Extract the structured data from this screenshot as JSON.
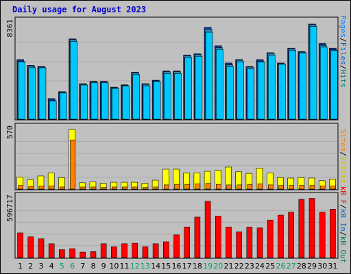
{
  "title": "Daily usage for August 2023",
  "colors": {
    "pages": "#003ea8",
    "files": "#2c8ab5",
    "hits": "#00c8ff",
    "visits": "#ffff00",
    "sites": "#ff8000",
    "kbf": "#ff0000",
    "kbin": "#0060a0",
    "kbout": "#007060",
    "weekend": "#00a060",
    "weekday": "#000000",
    "background": "#c0c0c0"
  },
  "side_labels": {
    "top": [
      {
        "text": "Pages",
        "color": "#0080ff"
      },
      {
        "text": "/",
        "color": "#000000"
      },
      {
        "text": "Files",
        "color": "#0060c0"
      },
      {
        "text": "/",
        "color": "#000000"
      },
      {
        "text": "Hits",
        "color": "#00806a"
      }
    ],
    "mid": [
      {
        "text": "Sites",
        "color": "#ff8000"
      },
      {
        "text": "/",
        "color": "#000000"
      },
      {
        "text": "Visits",
        "color": "#d0c000"
      }
    ],
    "bottom": [
      {
        "text": "kB F",
        "color": "#ff0000"
      },
      {
        "text": "/",
        "color": "#000000"
      },
      {
        "text": "kB In",
        "color": "#0060c0"
      },
      {
        "text": "/",
        "color": "#000000"
      },
      {
        "text": "kB Out",
        "color": "#00806a"
      }
    ]
  },
  "chart_data": [
    {
      "type": "bar",
      "name": "hits-files-pages",
      "ymax_label": "8361",
      "ylim": [
        0,
        8361
      ],
      "categories": [
        "1",
        "2",
        "3",
        "4",
        "5",
        "6",
        "7",
        "8",
        "9",
        "10",
        "11",
        "12",
        "13",
        "14",
        "15",
        "16",
        "17",
        "18",
        "19",
        "20",
        "21",
        "22",
        "23",
        "24",
        "25",
        "26",
        "27",
        "28",
        "29",
        "30",
        "31"
      ],
      "series": [
        {
          "name": "Pages",
          "values": [
            5200,
            4700,
            4600,
            1800,
            2400,
            7000,
            3100,
            3300,
            3300,
            2800,
            3000,
            4100,
            3100,
            3400,
            4200,
            4200,
            5600,
            5700,
            8000,
            6400,
            4900,
            5200,
            4600,
            5200,
            5800,
            4900,
            6200,
            5900,
            8300,
            6600,
            6200
          ]
        },
        {
          "name": "Files",
          "values": [
            5100,
            4700,
            4600,
            1700,
            2400,
            7000,
            3100,
            3300,
            3300,
            2800,
            3000,
            4100,
            3100,
            3400,
            4200,
            4200,
            5600,
            5700,
            7900,
            6300,
            4800,
            5200,
            4600,
            5100,
            5800,
            4900,
            6200,
            5900,
            8300,
            6500,
            6100
          ]
        },
        {
          "name": "Hits",
          "values": [
            5100,
            4600,
            4600,
            1700,
            2400,
            6900,
            3100,
            3300,
            3300,
            2800,
            3000,
            4000,
            3000,
            3400,
            4100,
            4100,
            5500,
            5600,
            7700,
            6200,
            4700,
            5100,
            4500,
            5100,
            5700,
            4900,
            6100,
            5900,
            8200,
            6400,
            6100
          ]
        }
      ]
    },
    {
      "type": "bar",
      "name": "visits-sites",
      "ymax_label": "570",
      "ylim": [
        0,
        570
      ],
      "categories": [
        "1",
        "2",
        "3",
        "4",
        "5",
        "6",
        "7",
        "8",
        "9",
        "10",
        "11",
        "12",
        "13",
        "14",
        "15",
        "16",
        "17",
        "18",
        "19",
        "20",
        "21",
        "22",
        "23",
        "24",
        "25",
        "26",
        "27",
        "28",
        "29",
        "30",
        "31"
      ],
      "series": [
        {
          "name": "Visits",
          "values": [
            115,
            90,
            125,
            155,
            110,
            570,
            60,
            70,
            55,
            65,
            65,
            65,
            55,
            85,
            190,
            190,
            155,
            155,
            170,
            180,
            210,
            165,
            150,
            200,
            155,
            110,
            105,
            110,
            105,
            80,
            95
          ]
        },
        {
          "name": "Sites",
          "values": [
            35,
            25,
            30,
            30,
            20,
            470,
            20,
            20,
            15,
            20,
            20,
            20,
            15,
            20,
            40,
            45,
            45,
            50,
            55,
            45,
            40,
            40,
            45,
            50,
            40,
            35,
            35,
            35,
            35,
            30,
            30
          ]
        }
      ]
    },
    {
      "type": "bar",
      "name": "kbytes",
      "ymax_label": "596717",
      "ylim": [
        0,
        596717
      ],
      "categories": [
        "1",
        "2",
        "3",
        "4",
        "5",
        "6",
        "7",
        "8",
        "9",
        "10",
        "11",
        "12",
        "13",
        "14",
        "15",
        "16",
        "17",
        "18",
        "19",
        "20",
        "21",
        "22",
        "23",
        "24",
        "25",
        "26",
        "27",
        "28",
        "29",
        "30",
        "31"
      ],
      "series": [
        {
          "name": "kB F",
          "values": [
            250000,
            210000,
            190000,
            140000,
            80000,
            90000,
            55000,
            60000,
            140000,
            110000,
            140000,
            145000,
            110000,
            140000,
            160000,
            230000,
            310000,
            410000,
            570000,
            420000,
            310000,
            260000,
            310000,
            300000,
            380000,
            430000,
            460000,
            590000,
            600000,
            460000,
            490000
          ]
        }
      ]
    }
  ]
}
